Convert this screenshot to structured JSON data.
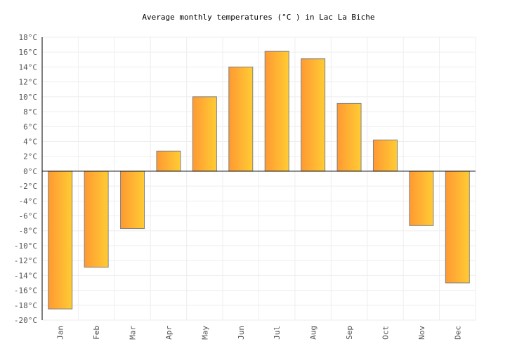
{
  "chart_data": {
    "type": "bar",
    "title": "Average monthly temperatures (°C ) in Lac La Biche",
    "categories": [
      "Jan",
      "Feb",
      "Mar",
      "Apr",
      "May",
      "Jun",
      "Jul",
      "Aug",
      "Sep",
      "Oct",
      "Nov",
      "Dec"
    ],
    "values": [
      -18.5,
      -12.9,
      -7.7,
      2.7,
      10.0,
      14.0,
      16.1,
      15.1,
      9.1,
      4.2,
      -7.3,
      -15.0
    ],
    "unit": "°C",
    "ylim": [
      -20,
      18
    ],
    "ytick_step": 2,
    "grid": true,
    "legend": "none",
    "colors": {
      "bar_start": "#ff9933",
      "bar_end": "#ffcc33",
      "bar_border": "#808080",
      "grid": "#eeeeee",
      "axis": "#000000"
    }
  }
}
